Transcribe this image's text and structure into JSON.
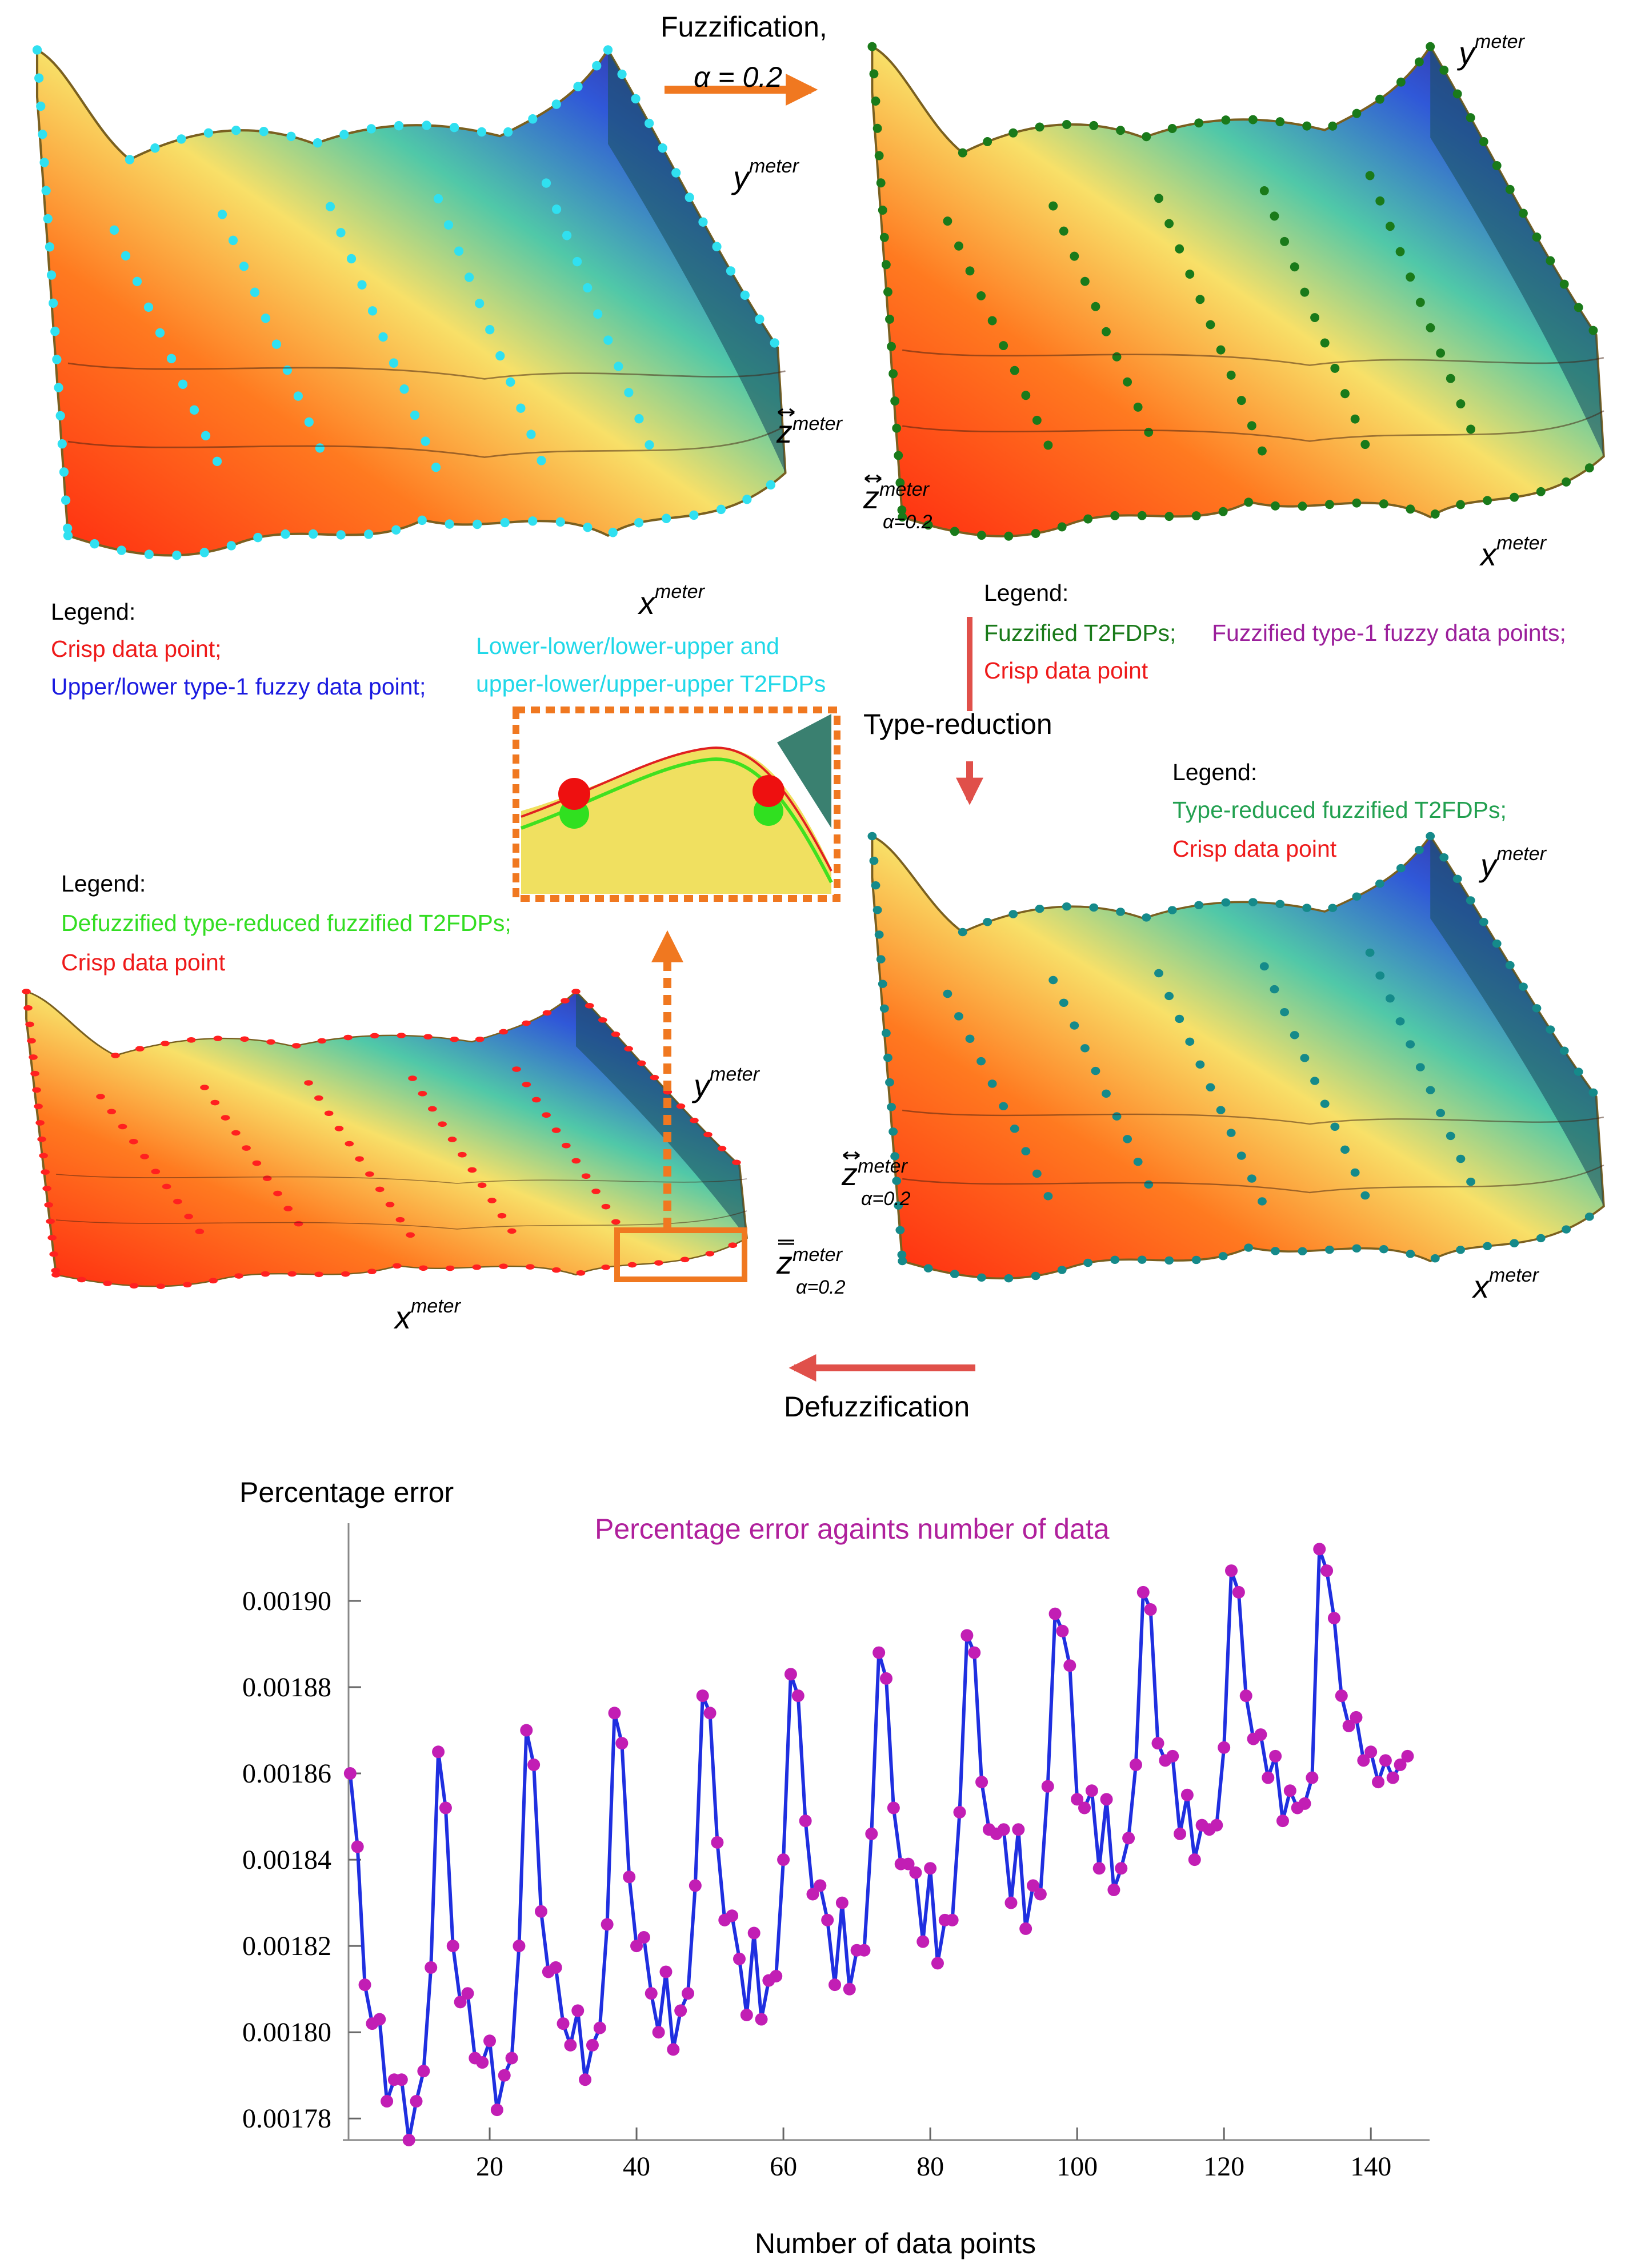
{
  "fuzzification": {
    "label": "Fuzzification,",
    "alpha": "α = 0.2"
  },
  "type_reduction": "Type-reduction",
  "defuzzification": "Defuzzification",
  "panels": [
    {
      "labels": {
        "y": {
          "base": "y",
          "sup": "meter"
        },
        "z": {
          "base": "z",
          "sup": "meter"
        },
        "x": {
          "base": "x",
          "sup": "meter"
        }
      },
      "legend": {
        "title": "Legend:",
        "items": [
          "Crisp data point;",
          "Upper/lower type-1 fuzzy data point;",
          "Lower-lower/lower-upper and",
          "upper-lower/upper-upper T2FDPs"
        ]
      }
    },
    {
      "labels": {
        "y": {
          "base": "y",
          "sup": "meter"
        },
        "z": {
          "base": "z",
          "sup": "meter",
          "sub": "α=0.2"
        },
        "x": {
          "base": "x",
          "sup": "meter"
        }
      },
      "legend": {
        "title": "Legend:",
        "items": [
          "Fuzzified T2FDPs;",
          "Fuzzified type-1 fuzzy data points;",
          "Crisp data point"
        ]
      }
    },
    {
      "labels": {
        "y": {
          "base": "y",
          "sup": "meter"
        },
        "z": {
          "base": "z",
          "sup": "meter",
          "sub": "α=0.2"
        },
        "x": {
          "base": "x",
          "sup": "meter"
        }
      },
      "legend": {
        "title": "Legend:",
        "items": [
          "Type-reduced fuzzified T2FDPs;",
          "Crisp data point"
        ]
      }
    },
    {
      "labels": {
        "y": {
          "base": "y",
          "sup": "meter"
        },
        "z": {
          "base": "z",
          "sup": "meter",
          "sub": "α=0.2"
        },
        "x": {
          "base": "x",
          "sup": "meter"
        }
      },
      "legend": {
        "title": "Legend:",
        "items": [
          "Defuzzified type-reduced fuzzified T2FDPs;",
          "Crisp data point"
        ]
      }
    }
  ],
  "chart_data": {
    "type": "line",
    "title": "Percentage error againts number of data",
    "y_label": "Percentage error",
    "x_label": "Number of data points",
    "color": "#1f2fe0",
    "marker_color": "#c21eb4",
    "xlim": [
      0,
      148
    ],
    "ylim": [
      0.001775,
      0.001918
    ],
    "xticks": [
      20,
      40,
      60,
      80,
      100,
      120,
      140
    ],
    "yticks": [
      0.00178,
      {
        "value": 0.0018,
        "label": "0.00180"
      },
      0.00182,
      0.00184,
      0.00186,
      0.00188,
      {
        "value": 0.0019,
        "label": "0.00190"
      }
    ],
    "x": [
      1,
      2,
      3,
      4,
      5,
      6,
      7,
      8,
      9,
      10,
      11,
      12,
      13,
      14,
      15,
      16,
      17,
      18,
      19,
      20,
      21,
      22,
      23,
      24,
      25,
      26,
      27,
      28,
      29,
      30,
      31,
      32,
      33,
      34,
      35,
      36,
      37,
      38,
      39,
      40,
      41,
      42,
      43,
      44,
      45,
      46,
      47,
      48,
      49,
      50,
      51,
      52,
      53,
      54,
      55,
      56,
      57,
      58,
      59,
      60,
      61,
      62,
      63,
      64,
      65,
      66,
      67,
      68,
      69,
      70,
      71,
      72,
      73,
      74,
      75,
      76,
      77,
      78,
      79,
      80,
      81,
      82,
      83,
      84,
      85,
      86,
      87,
      88,
      89,
      90,
      91,
      92,
      93,
      94,
      95,
      96,
      97,
      98,
      99,
      100,
      101,
      102,
      103,
      104,
      105,
      106,
      107,
      108,
      109,
      110,
      111,
      112,
      113,
      114,
      115,
      116,
      117,
      118,
      119,
      120,
      121,
      122,
      123,
      124,
      125,
      126,
      127,
      128,
      129,
      130,
      131,
      132,
      133,
      134,
      135,
      136,
      137,
      138,
      139,
      140,
      141,
      142,
      143,
      144,
      145
    ],
    "values": [
      0.00186,
      0.001843,
      0.001811,
      0.001802,
      0.001803,
      0.001784,
      0.001789,
      0.001789,
      0.001775,
      0.001784,
      0.001791,
      0.001815,
      0.001865,
      0.001852,
      0.00182,
      0.001807,
      0.001809,
      0.001794,
      0.001793,
      0.001798,
      0.001782,
      0.00179,
      0.001794,
      0.00182,
      0.00187,
      0.001862,
      0.001828,
      0.001814,
      0.001815,
      0.001802,
      0.001797,
      0.001805,
      0.001789,
      0.001797,
      0.001801,
      0.001825,
      0.001874,
      0.001867,
      0.001836,
      0.00182,
      0.001822,
      0.001809,
      0.0018,
      0.001814,
      0.001796,
      0.001805,
      0.001809,
      0.001834,
      0.001878,
      0.001874,
      0.001844,
      0.001826,
      0.001827,
      0.001817,
      0.001804,
      0.001823,
      0.001803,
      0.001812,
      0.001813,
      0.00184,
      0.001883,
      0.001878,
      0.001849,
      0.001832,
      0.001834,
      0.001826,
      0.001811,
      0.00183,
      0.00181,
      0.001819,
      0.001819,
      0.001846,
      0.001888,
      0.001882,
      0.001852,
      0.001839,
      0.001839,
      0.001837,
      0.001821,
      0.001838,
      0.001816,
      0.001826,
      0.001826,
      0.001851,
      0.001892,
      0.001888,
      0.001858,
      0.001847,
      0.001846,
      0.001847,
      0.00183,
      0.001847,
      0.001824,
      0.001834,
      0.001832,
      0.001857,
      0.001897,
      0.001893,
      0.001885,
      0.001854,
      0.001852,
      0.001856,
      0.001838,
      0.001854,
      0.001833,
      0.001838,
      0.001845,
      0.001862,
      0.001902,
      0.001898,
      0.001867,
      0.001863,
      0.001864,
      0.001846,
      0.001855,
      0.00184,
      0.001848,
      0.001847,
      0.001848,
      0.001866,
      0.001907,
      0.001902,
      0.001878,
      0.001868,
      0.001869,
      0.001859,
      0.001864,
      0.001849,
      0.001856,
      0.001852,
      0.001853,
      0.001859,
      0.001912,
      0.001907,
      0.001896,
      0.001878,
      0.001871,
      0.001873,
      0.001863,
      0.001865,
      0.001858,
      0.001863,
      0.001859,
      0.001862,
      0.001864
    ]
  }
}
